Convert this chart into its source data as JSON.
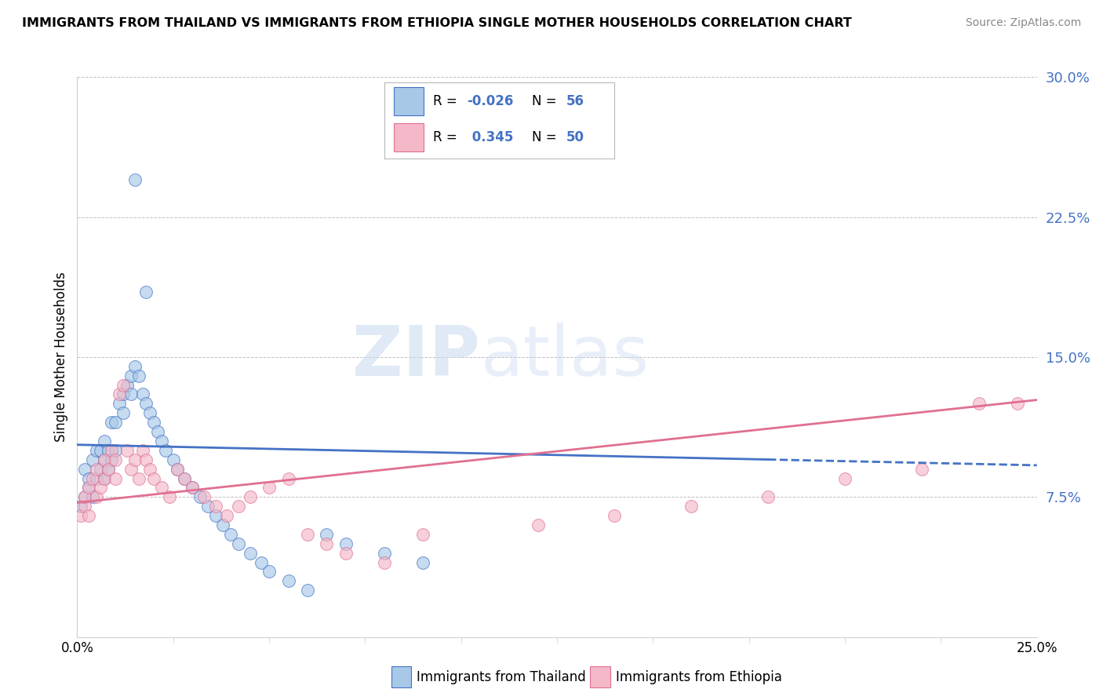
{
  "title": "IMMIGRANTS FROM THAILAND VS IMMIGRANTS FROM ETHIOPIA SINGLE MOTHER HOUSEHOLDS CORRELATION CHART",
  "source": "Source: ZipAtlas.com",
  "ylabel": "Single Mother Households",
  "color_thailand": "#a8c8e8",
  "color_ethiopia": "#f4b8c8",
  "color_line_thailand": "#4472c4",
  "color_line_ethiopia": "#e07090",
  "color_blue": "#4472c4",
  "watermark_zip": "ZIP",
  "watermark_atlas": "atlas",
  "x_lim": [
    0.0,
    0.25
  ],
  "y_lim": [
    0.0,
    0.3
  ],
  "y_ticks": [
    0.0,
    0.075,
    0.15,
    0.225,
    0.3
  ],
  "y_tick_labels": [
    "",
    "7.5%",
    "15.0%",
    "22.5%",
    "30.0%"
  ],
  "legend_r1": "-0.026",
  "legend_n1": "56",
  "legend_r2": "0.345",
  "legend_n2": "50",
  "thai_line_y0": 0.103,
  "thai_line_y1": 0.092,
  "eth_line_y0": 0.072,
  "eth_line_y1": 0.127,
  "thai_scatter_x": [
    0.001,
    0.002,
    0.002,
    0.003,
    0.003,
    0.004,
    0.004,
    0.005,
    0.005,
    0.006,
    0.006,
    0.007,
    0.007,
    0.007,
    0.008,
    0.008,
    0.009,
    0.009,
    0.01,
    0.01,
    0.011,
    0.012,
    0.012,
    0.013,
    0.014,
    0.014,
    0.015,
    0.016,
    0.017,
    0.018,
    0.019,
    0.02,
    0.021,
    0.022,
    0.023,
    0.025,
    0.026,
    0.028,
    0.03,
    0.032,
    0.034,
    0.036,
    0.038,
    0.04,
    0.042,
    0.045,
    0.048,
    0.05,
    0.055,
    0.06,
    0.065,
    0.07,
    0.08,
    0.09,
    0.015,
    0.018
  ],
  "thai_scatter_y": [
    0.07,
    0.075,
    0.09,
    0.08,
    0.085,
    0.095,
    0.075,
    0.1,
    0.085,
    0.09,
    0.1,
    0.095,
    0.085,
    0.105,
    0.1,
    0.09,
    0.115,
    0.095,
    0.1,
    0.115,
    0.125,
    0.13,
    0.12,
    0.135,
    0.14,
    0.13,
    0.145,
    0.14,
    0.13,
    0.125,
    0.12,
    0.115,
    0.11,
    0.105,
    0.1,
    0.095,
    0.09,
    0.085,
    0.08,
    0.075,
    0.07,
    0.065,
    0.06,
    0.055,
    0.05,
    0.045,
    0.04,
    0.035,
    0.03,
    0.025,
    0.055,
    0.05,
    0.045,
    0.04,
    0.245,
    0.185
  ],
  "eth_scatter_x": [
    0.001,
    0.002,
    0.002,
    0.003,
    0.003,
    0.004,
    0.005,
    0.005,
    0.006,
    0.007,
    0.007,
    0.008,
    0.009,
    0.01,
    0.01,
    0.011,
    0.012,
    0.013,
    0.014,
    0.015,
    0.016,
    0.017,
    0.018,
    0.019,
    0.02,
    0.022,
    0.024,
    0.026,
    0.028,
    0.03,
    0.033,
    0.036,
    0.039,
    0.042,
    0.045,
    0.05,
    0.055,
    0.06,
    0.065,
    0.07,
    0.08,
    0.09,
    0.12,
    0.14,
    0.16,
    0.18,
    0.2,
    0.22,
    0.235,
    0.245
  ],
  "eth_scatter_y": [
    0.065,
    0.07,
    0.075,
    0.08,
    0.065,
    0.085,
    0.075,
    0.09,
    0.08,
    0.085,
    0.095,
    0.09,
    0.1,
    0.085,
    0.095,
    0.13,
    0.135,
    0.1,
    0.09,
    0.095,
    0.085,
    0.1,
    0.095,
    0.09,
    0.085,
    0.08,
    0.075,
    0.09,
    0.085,
    0.08,
    0.075,
    0.07,
    0.065,
    0.07,
    0.075,
    0.08,
    0.085,
    0.055,
    0.05,
    0.045,
    0.04,
    0.055,
    0.06,
    0.065,
    0.07,
    0.075,
    0.085,
    0.09,
    0.125,
    0.125
  ]
}
